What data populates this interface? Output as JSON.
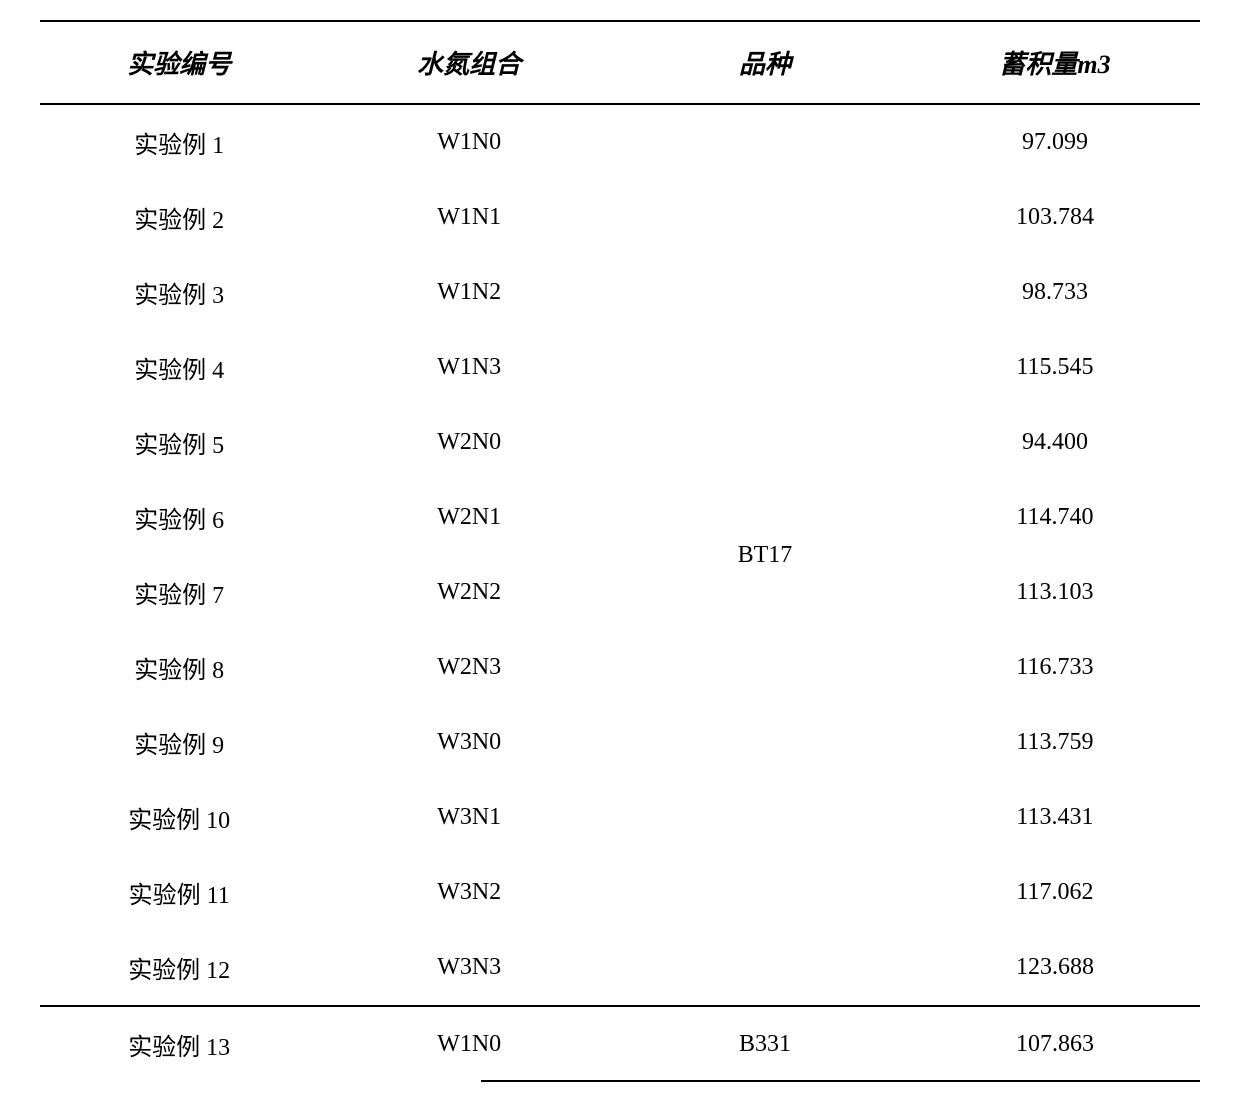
{
  "table": {
    "type": "table",
    "columns": {
      "col1": "实验编号",
      "col2": "水氮组合",
      "col3": "品种",
      "col4_prefix": "蓄积量",
      "col4_unit": "m3"
    },
    "header_fontsize": 26,
    "cell_fontsize": 24,
    "border_color": "#000000",
    "border_width": 2,
    "background_color": "#ffffff",
    "text_color": "#000000",
    "column_widths": [
      "24%",
      "26%",
      "25%",
      "25%"
    ],
    "groups": [
      {
        "variety": "BT17",
        "rows": [
          {
            "id": "实验例 1",
            "combo": "W1N0",
            "volume": "97.099"
          },
          {
            "id": "实验例 2",
            "combo": "W1N1",
            "volume": "103.784"
          },
          {
            "id": "实验例 3",
            "combo": "W1N2",
            "volume": "98.733"
          },
          {
            "id": "实验例 4",
            "combo": "W1N3",
            "volume": "115.545"
          },
          {
            "id": "实验例 5",
            "combo": "W2N0",
            "volume": "94.400"
          },
          {
            "id": "实验例 6",
            "combo": "W2N1",
            "volume": "114.740"
          },
          {
            "id": "实验例 7",
            "combo": "W2N2",
            "volume": "113.103"
          },
          {
            "id": "实验例 8",
            "combo": "W2N3",
            "volume": "116.733"
          },
          {
            "id": "实验例 9",
            "combo": "W3N0",
            "volume": "113.759"
          },
          {
            "id": "实验例 10",
            "combo": "W3N1",
            "volume": "113.431"
          },
          {
            "id": "实验例 11",
            "combo": "W3N2",
            "volume": "117.062"
          },
          {
            "id": "实验例 12",
            "combo": "W3N3",
            "volume": "123.688"
          }
        ]
      },
      {
        "variety": "B331",
        "rows": [
          {
            "id": "实验例 13",
            "combo": "W1N0",
            "volume": "107.863"
          }
        ]
      }
    ]
  }
}
